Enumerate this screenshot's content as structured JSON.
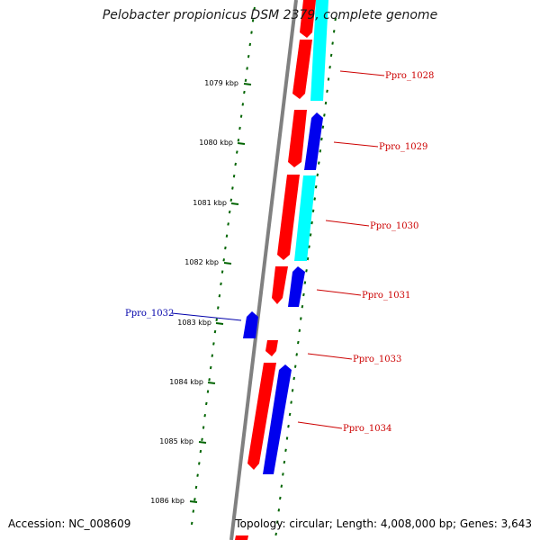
{
  "title": "Pelobacter propionicus DSM 2379, complete genome",
  "footer": {
    "accession": "Accession: NC_008609",
    "topology": "Topology: circular; Length: 4,008,000 bp; Genes: 3,643"
  },
  "colors": {
    "forward_gene": "#ff0000",
    "reverse_gene": "#0000ee",
    "cyan_track": "#00ffff",
    "tick": "#006400",
    "backbone": "#808080",
    "label_forward": "#cc0000",
    "label_reverse": "#0000aa"
  },
  "scale_labels": [
    "1079 kbp",
    "1080 kbp",
    "1081 kbp",
    "1082 kbp",
    "1083 kbp",
    "1084 kbp",
    "1085 kbp",
    "1086 kbp"
  ],
  "gene_labels": [
    {
      "name": "Ppro_1028",
      "strand": "forward"
    },
    {
      "name": "Ppro_1029",
      "strand": "forward"
    },
    {
      "name": "Ppro_1030",
      "strand": "forward"
    },
    {
      "name": "Ppro_1031",
      "strand": "forward"
    },
    {
      "name": "Ppro_1032",
      "strand": "reverse"
    },
    {
      "name": "Ppro_1033",
      "strand": "forward"
    },
    {
      "name": "Ppro_1034",
      "strand": "forward"
    }
  ]
}
